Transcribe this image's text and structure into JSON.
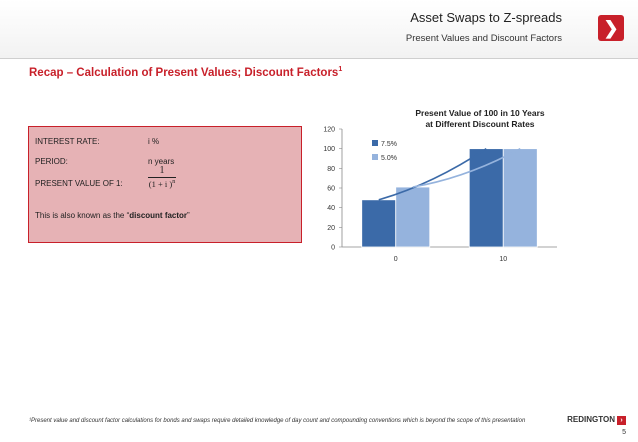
{
  "header": {
    "title": "Asset Swaps to Z-spreads",
    "subtitle": "Present Values and Discount Factors",
    "logo_glyph": "❯"
  },
  "section": {
    "title": "Recap – Calculation of Present Values; Discount Factors",
    "title_sup": "1"
  },
  "info_box": {
    "interest_rate_label": "INTEREST RATE:",
    "interest_rate_value": "i %",
    "period_label": "PERIOD:",
    "period_value": "n years",
    "pv_label": "PRESENT VALUE OF 1:",
    "formula_numerator": "1",
    "formula_denominator": "(1 + i )",
    "formula_exponent": "n",
    "also_known_prefix": "This is also known as the “",
    "also_known_term": "discount factor",
    "also_known_suffix": "”",
    "fill_color": "#e6b2b5",
    "border_color": "#c8202a"
  },
  "chart_data": {
    "type": "bar",
    "title_line1": "Present Value of 100 in 10 Years",
    "title_line2": "at Different Discount Rates",
    "categories": [
      "0",
      "10"
    ],
    "series": [
      {
        "name": "7.5%",
        "values": [
          48,
          100
        ],
        "color": "#3b6aa8"
      },
      {
        "name": "5.0%",
        "values": [
          61,
          100
        ],
        "color": "#95b3dd"
      }
    ],
    "trendlines": true,
    "ylim": [
      0,
      120
    ],
    "yticks": [
      "0",
      "20",
      "40",
      "60",
      "80",
      "100",
      "120"
    ],
    "legend": "top-left"
  },
  "footer": {
    "footnote": "¹Present value and discount factor calculations for bonds and swaps require detailed knowledge of day count and compounding conventions which is beyond the scope of this presentation",
    "brand": "REDINGTON",
    "brand_mark": "›",
    "page_number": "5"
  }
}
